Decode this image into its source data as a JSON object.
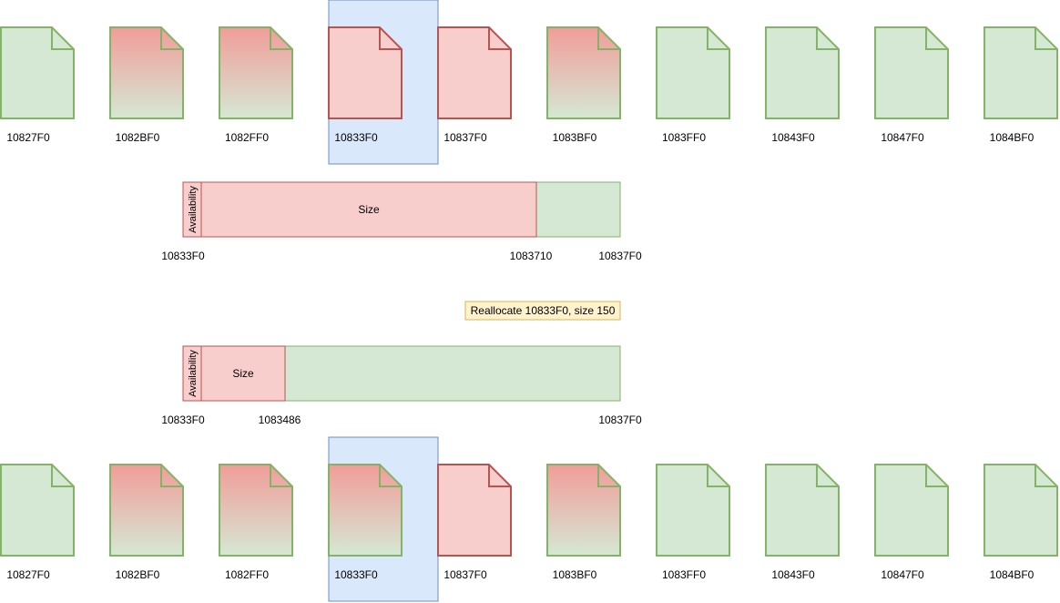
{
  "colors": {
    "green_fill": "#d5e8d4",
    "green_stroke": "#82b366",
    "red_fill": "#f8cecc",
    "red_stroke": "#b85450",
    "gradient_top": "#f19c99",
    "highlight_fill": "#dae8fc",
    "highlight_stroke": "#6c8ebf",
    "note_fill": "#fff2cc",
    "note_stroke": "#d6b656"
  },
  "before": {
    "pages": [
      {
        "address": "10827F0",
        "state": "free"
      },
      {
        "address": "1082BF0",
        "state": "partial"
      },
      {
        "address": "1082FF0",
        "state": "partial"
      },
      {
        "address": "10833F0",
        "state": "used"
      },
      {
        "address": "10837F0",
        "state": "used"
      },
      {
        "address": "1083BF0",
        "state": "partial"
      },
      {
        "address": "1083FF0",
        "state": "free"
      },
      {
        "address": "10843F0",
        "state": "free"
      },
      {
        "address": "10847F0",
        "state": "free"
      },
      {
        "address": "1084BF0",
        "state": "free"
      }
    ],
    "highlight_index": 3
  },
  "block_before": {
    "availability_label": "Availability",
    "size_label": "Size",
    "start_label": "10833F0",
    "split_label": "1083710",
    "end_label": "10837F0",
    "used_fraction": 0.8
  },
  "note": {
    "text": "Reallocate 10833F0, size 150"
  },
  "block_after": {
    "availability_label": "Availability",
    "size_label": "Size",
    "start_label": "10833F0",
    "split_label": "1083486",
    "end_label": "10837F0",
    "used_fraction": 0.2
  },
  "after": {
    "pages": [
      {
        "address": "10827F0",
        "state": "free"
      },
      {
        "address": "1082BF0",
        "state": "partial"
      },
      {
        "address": "1082FF0",
        "state": "partial"
      },
      {
        "address": "10833F0",
        "state": "partial"
      },
      {
        "address": "10837F0",
        "state": "used"
      },
      {
        "address": "1083BF0",
        "state": "partial"
      },
      {
        "address": "1083FF0",
        "state": "free"
      },
      {
        "address": "10843F0",
        "state": "free"
      },
      {
        "address": "10847F0",
        "state": "free"
      },
      {
        "address": "1084BF0",
        "state": "free"
      }
    ],
    "highlight_index": 3
  }
}
